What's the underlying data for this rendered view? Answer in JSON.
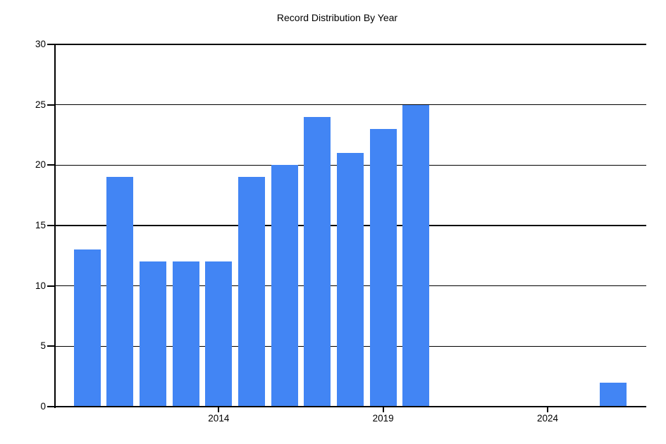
{
  "page": {
    "background_color": "#ffffff",
    "text_color": "#000000"
  },
  "chart_data": {
    "type": "bar",
    "title": "Record Distribution By Year",
    "xlabel": "",
    "ylabel": "",
    "x": [
      2010,
      2011,
      2012,
      2013,
      2014,
      2015,
      2016,
      2017,
      2018,
      2019,
      2020,
      2026
    ],
    "values": [
      13,
      19,
      12,
      12,
      12,
      19,
      20,
      24,
      21,
      23,
      25,
      2
    ],
    "xlim": [
      2009,
      2027
    ],
    "ylim": [
      0,
      30
    ],
    "yticks": [
      0,
      5,
      10,
      15,
      20,
      25,
      30
    ],
    "xticks": [
      2014,
      2019,
      2024
    ],
    "grid": "horizontal",
    "legend": "none",
    "bar_color": "#4285f4",
    "axis_color": "#000000",
    "grid_color": "#000000"
  }
}
